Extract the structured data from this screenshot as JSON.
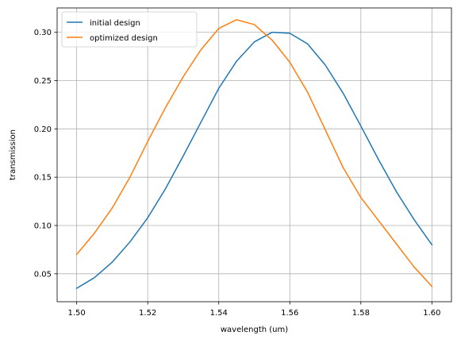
{
  "chart_data": {
    "type": "line",
    "title": "",
    "xlabel": "wavelength (um)",
    "ylabel": "transmission",
    "xlim": [
      1.4945,
      1.6055
    ],
    "ylim": [
      0.0211,
      0.3252
    ],
    "x_ticks": [
      1.5,
      1.52,
      1.54,
      1.56,
      1.58,
      1.6
    ],
    "x_tick_labels": [
      "1.50",
      "1.52",
      "1.54",
      "1.56",
      "1.58",
      "1.60"
    ],
    "y_ticks": [
      0.05,
      0.1,
      0.15,
      0.2,
      0.25,
      0.3
    ],
    "y_tick_labels": [
      "0.05",
      "0.10",
      "0.15",
      "0.20",
      "0.25",
      "0.30"
    ],
    "grid": true,
    "legend_position": "top-left",
    "x": [
      1.5,
      1.505,
      1.51,
      1.515,
      1.52,
      1.525,
      1.53,
      1.535,
      1.54,
      1.545,
      1.55,
      1.555,
      1.56,
      1.565,
      1.57,
      1.575,
      1.58,
      1.585,
      1.59,
      1.595,
      1.6
    ],
    "series": [
      {
        "name": "initial design",
        "color": "#1f77b4",
        "values": [
          0.035,
          0.046,
          0.062,
          0.083,
          0.108,
          0.138,
          0.172,
          0.207,
          0.242,
          0.27,
          0.29,
          0.3,
          0.299,
          0.288,
          0.266,
          0.237,
          0.203,
          0.168,
          0.135,
          0.106,
          0.08
        ]
      },
      {
        "name": "optimized design",
        "color": "#ff7f0e",
        "values": [
          0.07,
          0.092,
          0.118,
          0.15,
          0.187,
          0.222,
          0.254,
          0.282,
          0.304,
          0.313,
          0.308,
          0.292,
          0.269,
          0.238,
          0.199,
          0.16,
          0.129,
          0.105,
          0.081,
          0.057,
          0.037
        ]
      }
    ]
  }
}
